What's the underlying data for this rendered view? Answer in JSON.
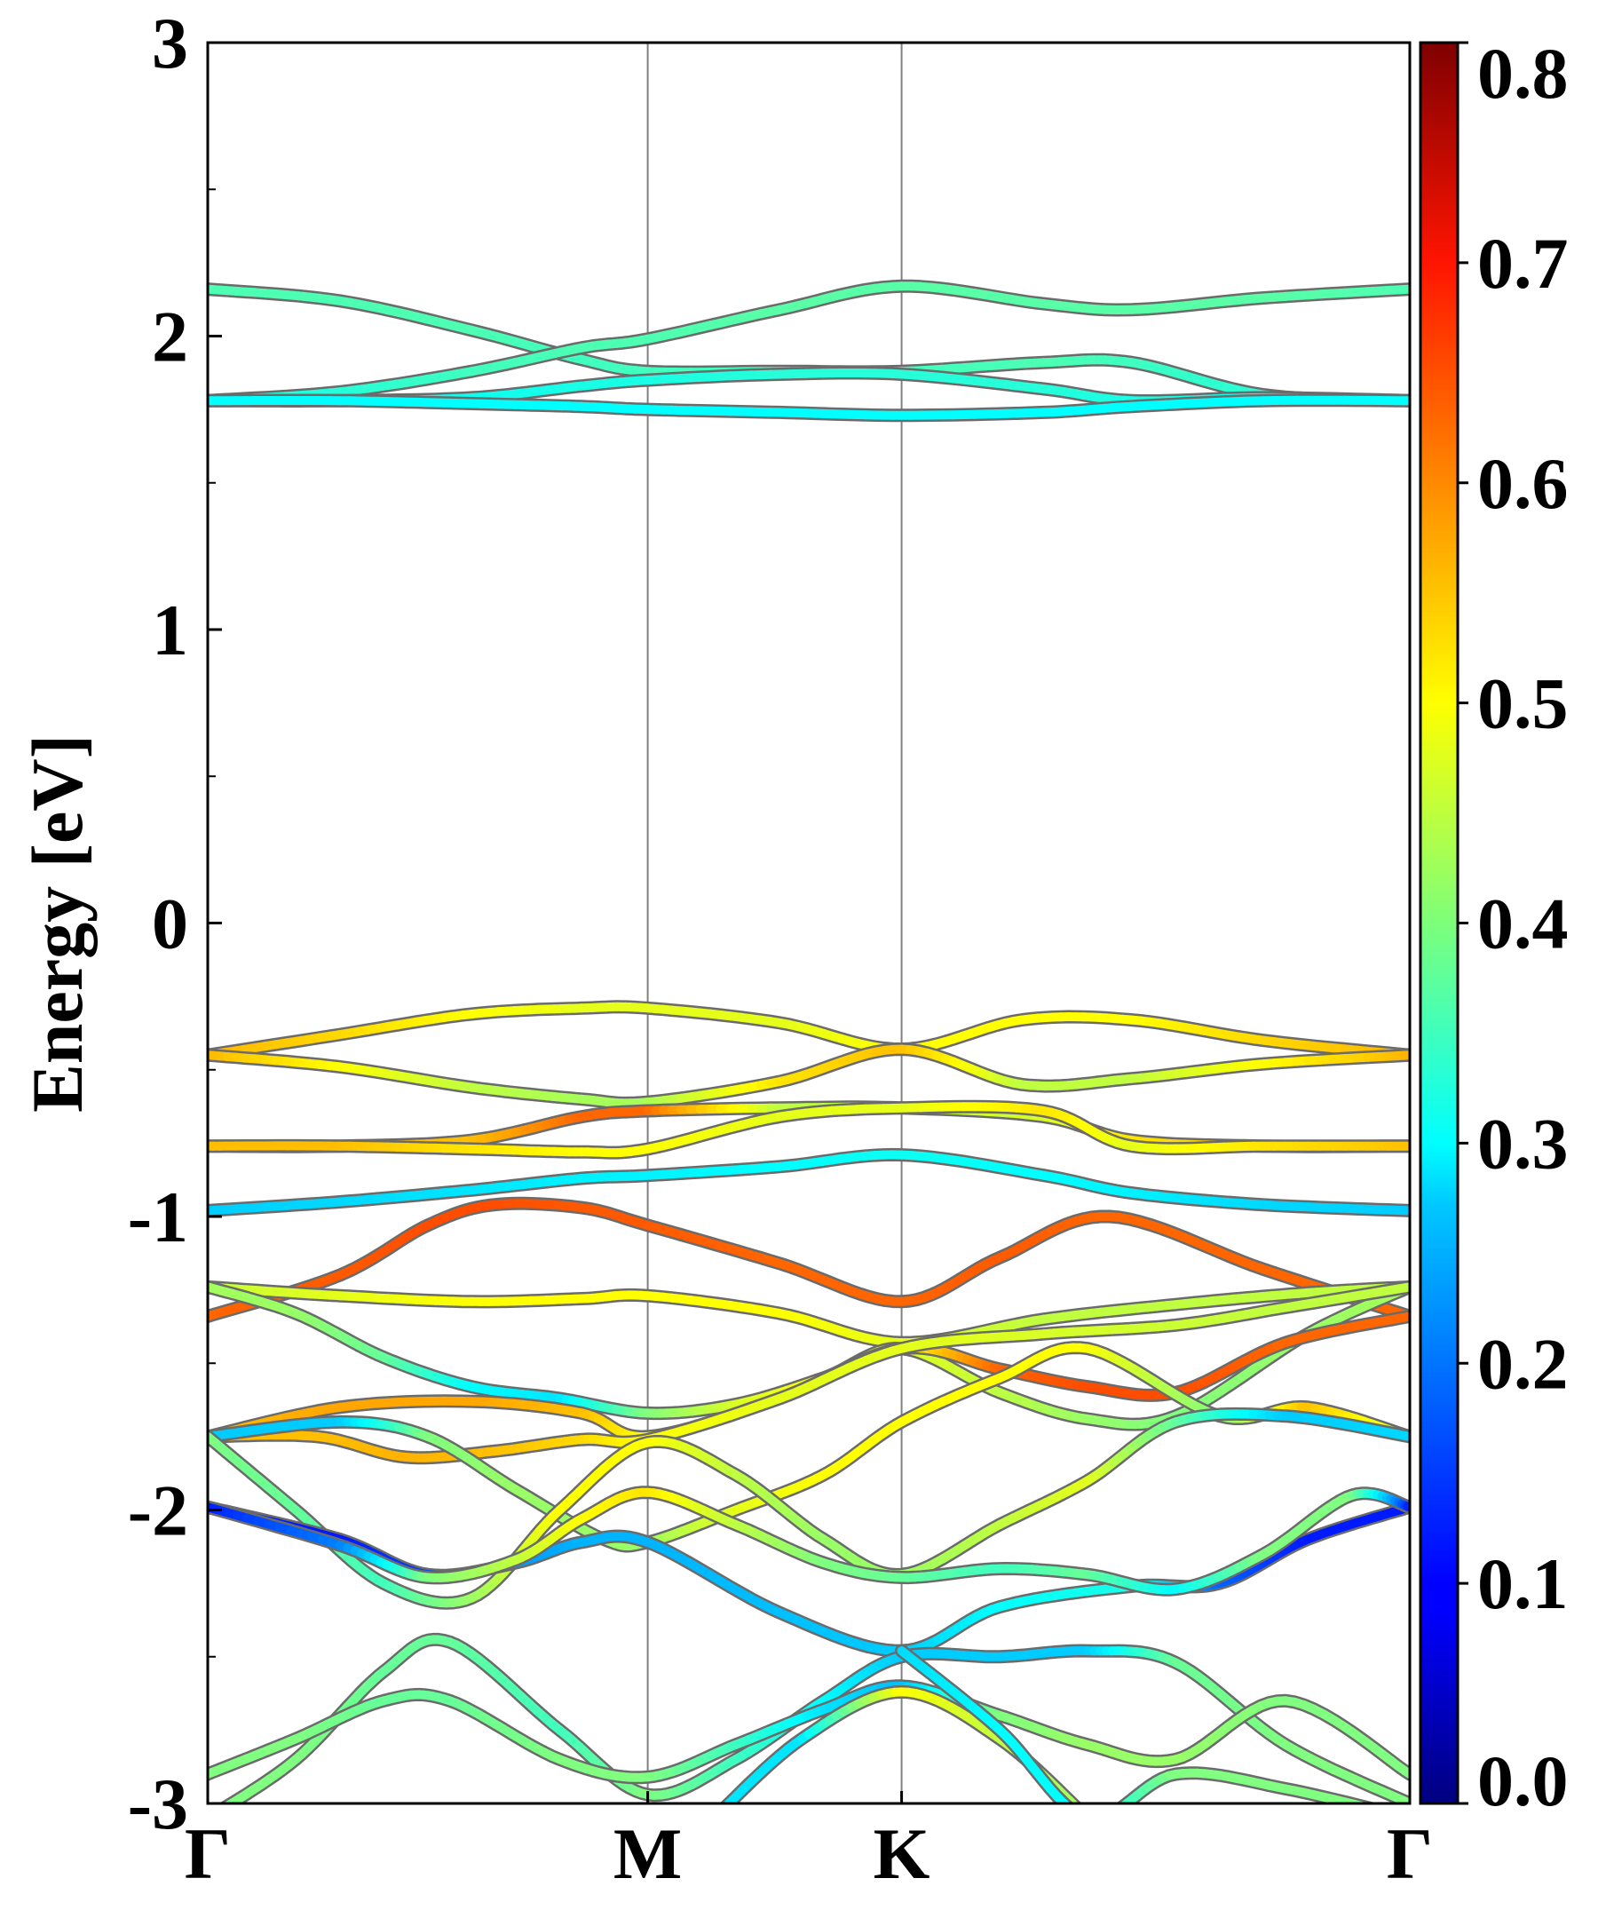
{
  "chart_data": {
    "type": "line",
    "title": "",
    "ylabel": "Energy [eV]",
    "xlabel": "",
    "ylim": [
      -3,
      3
    ],
    "yticks": [
      {
        "value": 3,
        "label": "3"
      },
      {
        "value": 2,
        "label": "2"
      },
      {
        "value": 1,
        "label": "1"
      },
      {
        "value": 0,
        "label": "0"
      },
      {
        "value": -1,
        "label": "-1"
      },
      {
        "value": -2,
        "label": "-2"
      },
      {
        "value": -3,
        "label": "-3"
      }
    ],
    "xlim": [
      0,
      2.732
    ],
    "high_symmetry_points": [
      {
        "label": "Γ",
        "k": 0
      },
      {
        "label": "M",
        "k": 1.0
      },
      {
        "label": "K",
        "k": 1.577
      },
      {
        "label": "Γ",
        "k": 2.732
      }
    ],
    "grid": false,
    "colorbar": {
      "colormap": "jet",
      "range": [
        0.0,
        0.8
      ],
      "ticks": [
        "0.0",
        "0.1",
        "0.2",
        "0.3",
        "0.4",
        "0.5",
        "0.6",
        "0.7",
        "0.8"
      ],
      "tick_values": [
        0.0,
        0.1,
        0.2,
        0.3,
        0.4,
        0.5,
        0.6,
        0.7,
        0.8
      ]
    },
    "series": [
      {
        "k": [
          0,
          0.3,
          0.6,
          0.85,
          1.0,
          1.3,
          1.577,
          1.9,
          2.1,
          2.4,
          2.732
        ],
        "energy": [
          2.16,
          2.12,
          2.02,
          1.92,
          1.88,
          1.88,
          1.88,
          1.91,
          1.91,
          1.8,
          1.78
        ],
        "weight": [
          0.36,
          0.36,
          0.36,
          0.35,
          0.35,
          0.35,
          0.35,
          0.36,
          0.35,
          0.33,
          0.32
        ]
      },
      {
        "k": [
          0,
          0.3,
          0.6,
          0.85,
          1.0,
          1.3,
          1.577,
          1.9,
          2.1,
          2.4,
          2.732
        ],
        "energy": [
          1.78,
          1.81,
          1.88,
          1.96,
          1.99,
          2.09,
          2.17,
          2.11,
          2.09,
          2.13,
          2.16
        ],
        "weight": [
          0.32,
          0.33,
          0.35,
          0.36,
          0.36,
          0.37,
          0.37,
          0.37,
          0.37,
          0.37,
          0.36
        ]
      },
      {
        "k": [
          0,
          0.3,
          0.6,
          0.85,
          1.0,
          1.3,
          1.577,
          1.9,
          2.1,
          2.4,
          2.732
        ],
        "energy": [
          1.78,
          1.78,
          1.79,
          1.83,
          1.85,
          1.87,
          1.87,
          1.82,
          1.78,
          1.79,
          1.78
        ],
        "weight": [
          0.31,
          0.31,
          0.31,
          0.32,
          0.32,
          0.33,
          0.33,
          0.33,
          0.32,
          0.32,
          0.31
        ]
      },
      {
        "k": [
          0,
          0.3,
          0.6,
          0.85,
          1.0,
          1.3,
          1.577,
          1.9,
          2.1,
          2.4,
          2.732
        ],
        "energy": [
          1.78,
          1.78,
          1.77,
          1.76,
          1.75,
          1.74,
          1.73,
          1.74,
          1.76,
          1.78,
          1.78
        ],
        "weight": [
          0.3,
          0.3,
          0.3,
          0.3,
          0.3,
          0.3,
          0.3,
          0.3,
          0.3,
          0.3,
          0.3
        ]
      },
      {
        "k": [
          0,
          0.3,
          0.6,
          0.85,
          1.0,
          1.3,
          1.577,
          1.85,
          2.1,
          2.4,
          2.732
        ],
        "energy": [
          -0.45,
          -0.38,
          -0.31,
          -0.29,
          -0.29,
          -0.34,
          -0.43,
          -0.33,
          -0.33,
          -0.4,
          -0.45
        ],
        "weight": [
          0.56,
          0.53,
          0.5,
          0.48,
          0.48,
          0.48,
          0.5,
          0.5,
          0.5,
          0.53,
          0.56
        ]
      },
      {
        "k": [
          0,
          0.3,
          0.6,
          0.85,
          1.0,
          1.3,
          1.577,
          1.85,
          2.1,
          2.4,
          2.732
        ],
        "energy": [
          -0.45,
          -0.49,
          -0.56,
          -0.6,
          -0.61,
          -0.54,
          -0.43,
          -0.55,
          -0.53,
          -0.48,
          -0.45
        ],
        "weight": [
          0.56,
          0.5,
          0.45,
          0.43,
          0.43,
          0.52,
          0.55,
          0.45,
          0.45,
          0.5,
          0.56
        ]
      },
      {
        "k": [
          0,
          0.3,
          0.6,
          0.85,
          1.0,
          1.3,
          1.577,
          1.9,
          2.1,
          2.4,
          2.732
        ],
        "energy": [
          -0.76,
          -0.76,
          -0.74,
          -0.66,
          -0.64,
          -0.63,
          -0.63,
          -0.66,
          -0.74,
          -0.76,
          -0.76
        ],
        "weight": [
          0.55,
          0.55,
          0.55,
          0.62,
          0.62,
          0.45,
          0.45,
          0.47,
          0.52,
          0.55,
          0.55
        ]
      },
      {
        "k": [
          0,
          0.3,
          0.6,
          0.85,
          1.0,
          1.3,
          1.577,
          1.9,
          2.1,
          2.4,
          2.732
        ],
        "energy": [
          -0.76,
          -0.76,
          -0.77,
          -0.78,
          -0.77,
          -0.66,
          -0.63,
          -0.64,
          -0.76,
          -0.76,
          -0.76
        ],
        "weight": [
          0.55,
          0.55,
          0.52,
          0.5,
          0.5,
          0.48,
          0.48,
          0.52,
          0.48,
          0.52,
          0.55
        ]
      },
      {
        "k": [
          0,
          0.3,
          0.6,
          0.85,
          1.0,
          1.3,
          1.577,
          1.9,
          2.1,
          2.4,
          2.732
        ],
        "energy": [
          -0.98,
          -0.95,
          -0.91,
          -0.87,
          -0.86,
          -0.83,
          -0.79,
          -0.86,
          -0.92,
          -0.96,
          -0.98
        ],
        "weight": [
          0.26,
          0.27,
          0.28,
          0.29,
          0.29,
          0.3,
          0.31,
          0.3,
          0.29,
          0.27,
          0.26
        ]
      },
      {
        "k": [
          0,
          0.3,
          0.5,
          0.65,
          0.85,
          1.0,
          1.3,
          1.577,
          1.8,
          2.05,
          2.4,
          2.732
        ],
        "energy": [
          -1.34,
          -1.2,
          -1.03,
          -0.96,
          -0.97,
          -1.03,
          -1.16,
          -1.29,
          -1.14,
          -1.0,
          -1.18,
          -1.34
        ],
        "weight": [
          0.62,
          0.63,
          0.64,
          0.64,
          0.63,
          0.63,
          0.62,
          0.62,
          0.63,
          0.62,
          0.62,
          0.62
        ]
      },
      {
        "k": [
          0,
          0.3,
          0.6,
          0.85,
          1.0,
          1.3,
          1.577,
          1.9,
          2.2,
          2.5,
          2.732
        ],
        "energy": [
          -1.24,
          -1.27,
          -1.29,
          -1.28,
          -1.27,
          -1.33,
          -1.43,
          -1.35,
          -1.3,
          -1.26,
          -1.24
        ],
        "weight": [
          0.45,
          0.48,
          0.5,
          0.5,
          0.5,
          0.5,
          0.48,
          0.45,
          0.45,
          0.45,
          0.45
        ]
      },
      {
        "k": [
          0,
          0.2,
          0.4,
          0.6,
          0.8,
          1.0,
          1.2,
          1.4,
          1.577,
          1.8,
          2.0,
          2.2,
          2.5,
          2.732
        ],
        "energy": [
          -1.24,
          -1.33,
          -1.48,
          -1.58,
          -1.62,
          -1.67,
          -1.64,
          -1.55,
          -1.45,
          -1.6,
          -1.69,
          -1.68,
          -1.4,
          -1.24
        ],
        "weight": [
          0.43,
          0.42,
          0.38,
          0.3,
          0.28,
          0.4,
          0.47,
          0.5,
          0.48,
          0.45,
          0.42,
          0.4,
          0.42,
          0.43
        ]
      },
      {
        "k": [
          0,
          0.3,
          0.6,
          0.85,
          1.0,
          1.3,
          1.577,
          1.8,
          2.0,
          2.2,
          2.45,
          2.732
        ],
        "energy": [
          -1.75,
          -1.65,
          -1.63,
          -1.67,
          -1.75,
          -1.62,
          -1.45,
          -1.52,
          -1.58,
          -1.6,
          -1.43,
          -1.34
        ],
        "weight": [
          0.55,
          0.57,
          0.57,
          0.55,
          0.5,
          0.5,
          0.5,
          0.62,
          0.64,
          0.64,
          0.62,
          0.62
        ]
      },
      {
        "k": [
          0,
          0.25,
          0.45,
          0.65,
          0.85,
          1.0,
          1.3,
          1.577,
          1.9,
          2.2,
          2.45,
          2.732
        ],
        "energy": [
          -1.75,
          -1.75,
          -1.82,
          -1.8,
          -1.76,
          -1.76,
          -1.62,
          -1.45,
          -1.4,
          -1.37,
          -1.31,
          -1.24
        ],
        "weight": [
          0.55,
          0.55,
          0.56,
          0.55,
          0.53,
          0.5,
          0.48,
          0.48,
          0.47,
          0.46,
          0.45,
          0.45
        ]
      },
      {
        "k": [
          0,
          0.3,
          0.5,
          0.7,
          0.9,
          1.0,
          1.2,
          1.4,
          1.577,
          1.8,
          2.0,
          2.3,
          2.5,
          2.732
        ],
        "energy": [
          -1.75,
          -1.7,
          -1.75,
          -1.93,
          -2.1,
          -2.11,
          -2.0,
          -1.88,
          -1.7,
          -1.55,
          -1.45,
          -1.68,
          -1.65,
          -1.75
        ],
        "weight": [
          0.26,
          0.26,
          0.4,
          0.42,
          0.42,
          0.42,
          0.48,
          0.5,
          0.5,
          0.5,
          0.5,
          0.4,
          0.55,
          0.45
        ]
      },
      {
        "k": [
          0,
          0.2,
          0.4,
          0.6,
          0.8,
          1.0,
          1.2,
          1.4,
          1.577,
          1.8,
          2.0,
          2.2,
          2.45,
          2.732
        ],
        "energy": [
          -1.75,
          -2.0,
          -2.25,
          -2.3,
          -2.0,
          -1.77,
          -1.88,
          -2.1,
          -2.22,
          -2.05,
          -1.9,
          -1.7,
          -1.68,
          -1.75
        ],
        "weight": [
          0.4,
          0.38,
          0.35,
          0.42,
          0.5,
          0.5,
          0.45,
          0.42,
          0.42,
          0.45,
          0.48,
          0.38,
          0.26,
          0.27
        ]
      },
      {
        "k": [
          0,
          0.3,
          0.5,
          0.7,
          0.85,
          1.0,
          1.3,
          1.577,
          1.8,
          2.1,
          2.3,
          2.5,
          2.732
        ],
        "energy": [
          -1.99,
          -2.1,
          -2.22,
          -2.18,
          -2.11,
          -2.11,
          -2.35,
          -2.48,
          -2.33,
          -2.26,
          -2.25,
          -2.1,
          -1.99
        ],
        "weight": [
          0.12,
          0.12,
          0.15,
          0.22,
          0.24,
          0.24,
          0.25,
          0.26,
          0.3,
          0.32,
          0.18,
          0.12,
          0.12
        ]
      },
      {
        "k": [
          0,
          0.3,
          0.5,
          0.7,
          0.85,
          1.0,
          1.2,
          1.4,
          1.577,
          1.8,
          2.0,
          2.2,
          2.4,
          2.6,
          2.732
        ],
        "energy": [
          -1.99,
          -2.12,
          -2.23,
          -2.17,
          -2.03,
          -1.94,
          -2.05,
          -2.18,
          -2.23,
          -2.2,
          -2.22,
          -2.27,
          -2.15,
          -1.95,
          -1.99
        ],
        "weight": [
          0.12,
          0.2,
          0.4,
          0.45,
          0.5,
          0.52,
          0.45,
          0.4,
          0.38,
          0.35,
          0.38,
          0.3,
          0.4,
          0.4,
          0.12
        ]
      },
      {
        "k": [
          0,
          0.2,
          0.4,
          0.55,
          0.8,
          1.0,
          1.2,
          1.4,
          1.577,
          1.8,
          2.0,
          2.2,
          2.45,
          2.732
        ],
        "energy": [
          -3.05,
          -2.85,
          -2.55,
          -2.45,
          -2.75,
          -2.97,
          -2.85,
          -2.65,
          -2.5,
          -2.5,
          -2.48,
          -2.52,
          -2.8,
          -3.0
        ],
        "weight": [
          0.4,
          0.4,
          0.38,
          0.38,
          0.35,
          0.4,
          0.35,
          0.3,
          0.26,
          0.26,
          0.26,
          0.38,
          0.4,
          0.4
        ]
      },
      {
        "k": [
          0,
          0.2,
          0.4,
          0.55,
          0.8,
          1.0,
          1.2,
          1.4,
          1.577,
          1.8,
          2.0,
          2.2,
          2.45,
          2.732
        ],
        "energy": [
          -2.9,
          -2.78,
          -2.65,
          -2.65,
          -2.85,
          -2.91,
          -2.8,
          -2.68,
          -2.6,
          -2.7,
          -2.8,
          -2.85,
          -2.65,
          -2.9
        ],
        "weight": [
          0.4,
          0.4,
          0.38,
          0.38,
          0.4,
          0.4,
          0.35,
          0.28,
          0.25,
          0.4,
          0.42,
          0.42,
          0.4,
          0.4
        ]
      },
      {
        "k": [
          1.15,
          1.35,
          1.577,
          1.8,
          2.0
        ],
        "energy": [
          -3.05,
          -2.78,
          -2.62,
          -2.78,
          -3.05
        ],
        "weight": [
          0.28,
          0.28,
          0.5,
          0.45,
          0.42
        ]
      },
      {
        "k": [
          1.577,
          1.8,
          2.0,
          2.2,
          2.45,
          2.732
        ],
        "energy": [
          -2.48,
          -2.75,
          -3.05,
          -2.9,
          -2.95,
          -3.05
        ],
        "weight": [
          0.27,
          0.3,
          0.3,
          0.4,
          0.4,
          0.4
        ]
      }
    ]
  }
}
